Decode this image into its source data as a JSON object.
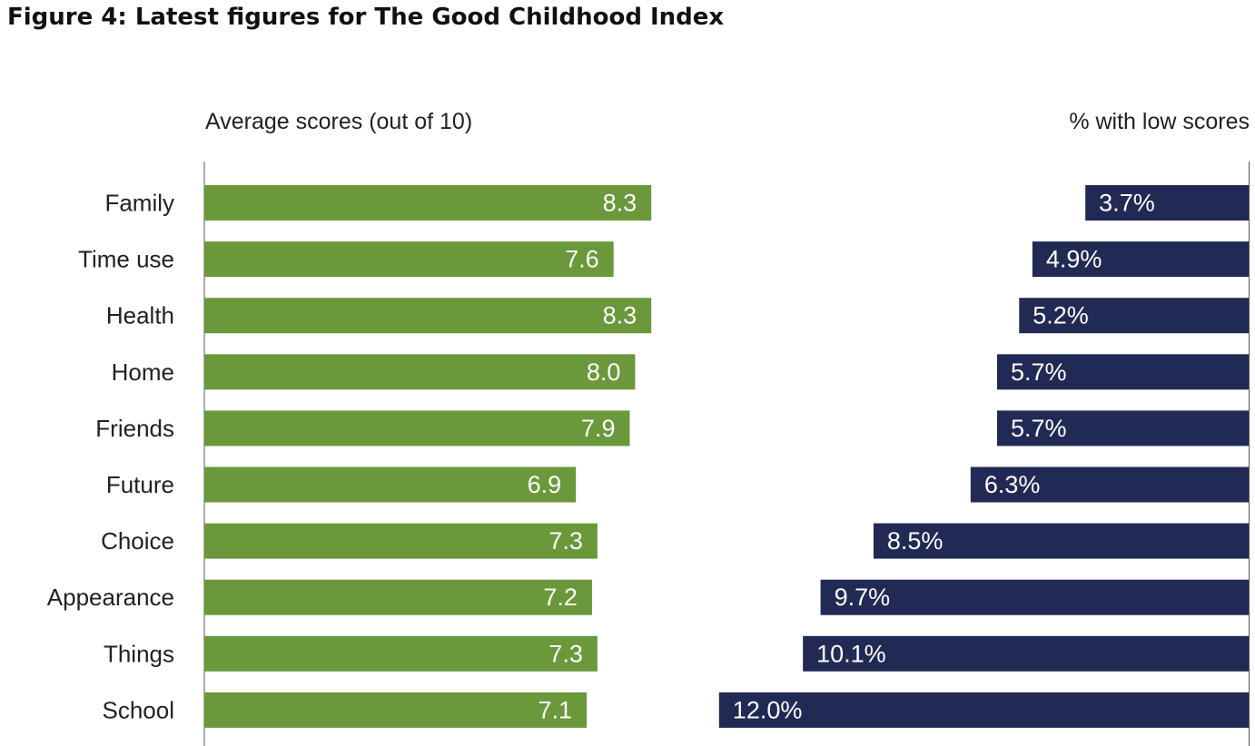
{
  "chart_data": {
    "type": "bar",
    "orientation": "horizontal",
    "title": "Figure 4: Latest figures for The Good Childhood Index",
    "categories": [
      "Family",
      "Time use",
      "Health",
      "Home",
      "Friends",
      "Future",
      "Choice",
      "Appearance",
      "Things",
      "School"
    ],
    "panels": [
      {
        "heading": "Average scores (out of 10)",
        "color": "#6b983b",
        "values": [
          8.3,
          7.6,
          8.3,
          8.0,
          7.9,
          6.9,
          7.3,
          7.2,
          7.3,
          7.1
        ],
        "value_labels": [
          "8.3",
          "7.6",
          "8.3",
          "8.0",
          "7.9",
          "6.9",
          "7.3",
          "7.2",
          "7.3",
          "7.1"
        ],
        "xlim": [
          0,
          10
        ]
      },
      {
        "heading": "% with low scores",
        "color": "#212a55",
        "values": [
          3.7,
          4.9,
          5.2,
          5.7,
          5.7,
          6.3,
          8.5,
          9.7,
          10.1,
          12.0
        ],
        "value_labels": [
          "3.7%",
          "4.9%",
          "5.2%",
          "5.7%",
          "5.7%",
          "6.3%",
          "8.5%",
          "9.7%",
          "10.1%",
          "12.0%"
        ],
        "xlim": [
          0,
          12
        ],
        "direction": "right-to-left"
      }
    ]
  }
}
